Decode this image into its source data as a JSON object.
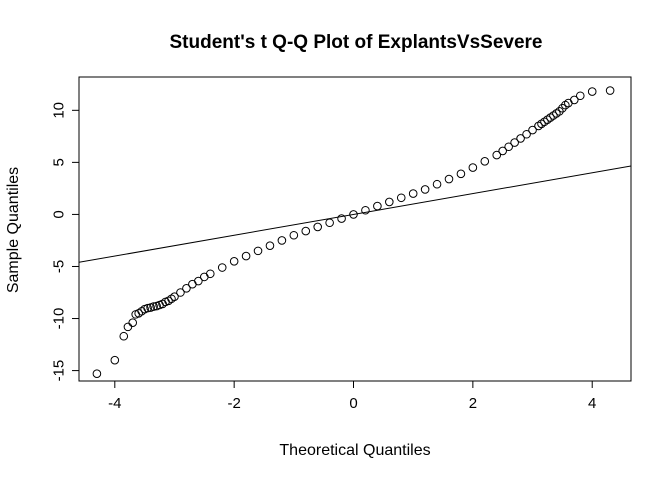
{
  "chart_data": {
    "type": "scatter",
    "title": "Student's t Q-Q Plot of ExplantsVsSevere",
    "xlabel": "Theoretical Quantiles",
    "ylabel": "Sample Quantiles",
    "xlim": [
      -4.6,
      4.65
    ],
    "ylim": [
      -16.0,
      13.2
    ],
    "x_ticks": [
      -4,
      -2,
      0,
      2,
      4
    ],
    "x_tick_labels": [
      "-4",
      "-2",
      "0",
      "2",
      "4"
    ],
    "y_ticks": [
      -15,
      -10,
      -5,
      0,
      5,
      10
    ],
    "y_tick_labels": [
      "-15",
      "-10",
      "-5",
      "0",
      "5",
      "10"
    ],
    "grid": false,
    "marker": "open-circle",
    "reference_line": {
      "intercept": 0.0,
      "slope": 1.0
    },
    "points": {
      "x": [
        -4.3,
        -4.0,
        -3.85,
        -3.78,
        -3.7,
        -3.65,
        -3.6,
        -3.55,
        -3.5,
        -3.45,
        -3.4,
        -3.35,
        -3.3,
        -3.25,
        -3.2,
        -3.15,
        -3.1,
        -3.05,
        -3.0,
        -2.9,
        -2.8,
        -2.7,
        -2.6,
        -2.5,
        -2.4,
        -2.2,
        -2.0,
        -1.8,
        -1.6,
        -1.4,
        -1.2,
        -1.0,
        -0.8,
        -0.6,
        -0.4,
        -0.2,
        0.0,
        0.2,
        0.4,
        0.6,
        0.8,
        1.0,
        1.2,
        1.4,
        1.6,
        1.8,
        2.0,
        2.2,
        2.4,
        2.5,
        2.6,
        2.7,
        2.8,
        2.9,
        3.0,
        3.1,
        3.15,
        3.2,
        3.25,
        3.3,
        3.35,
        3.4,
        3.45,
        3.5,
        3.55,
        3.6,
        3.7,
        3.8,
        4.0,
        4.3
      ],
      "y": [
        -15.3,
        -14.0,
        -11.7,
        -10.8,
        -10.4,
        -9.6,
        -9.5,
        -9.3,
        -9.1,
        -9.0,
        -8.95,
        -8.85,
        -8.8,
        -8.7,
        -8.6,
        -8.4,
        -8.3,
        -8.1,
        -7.9,
        -7.5,
        -7.1,
        -6.7,
        -6.4,
        -6.0,
        -5.7,
        -5.1,
        -4.5,
        -4.0,
        -3.5,
        -3.0,
        -2.5,
        -2.0,
        -1.6,
        -1.2,
        -0.8,
        -0.4,
        0.0,
        0.4,
        0.8,
        1.2,
        1.6,
        2.0,
        2.4,
        2.9,
        3.4,
        3.9,
        4.5,
        5.1,
        5.7,
        6.1,
        6.5,
        6.9,
        7.3,
        7.7,
        8.1,
        8.5,
        8.7,
        8.9,
        9.1,
        9.3,
        9.5,
        9.7,
        9.9,
        10.2,
        10.5,
        10.7,
        11.0,
        11.4,
        11.8,
        11.9
      ]
    }
  }
}
